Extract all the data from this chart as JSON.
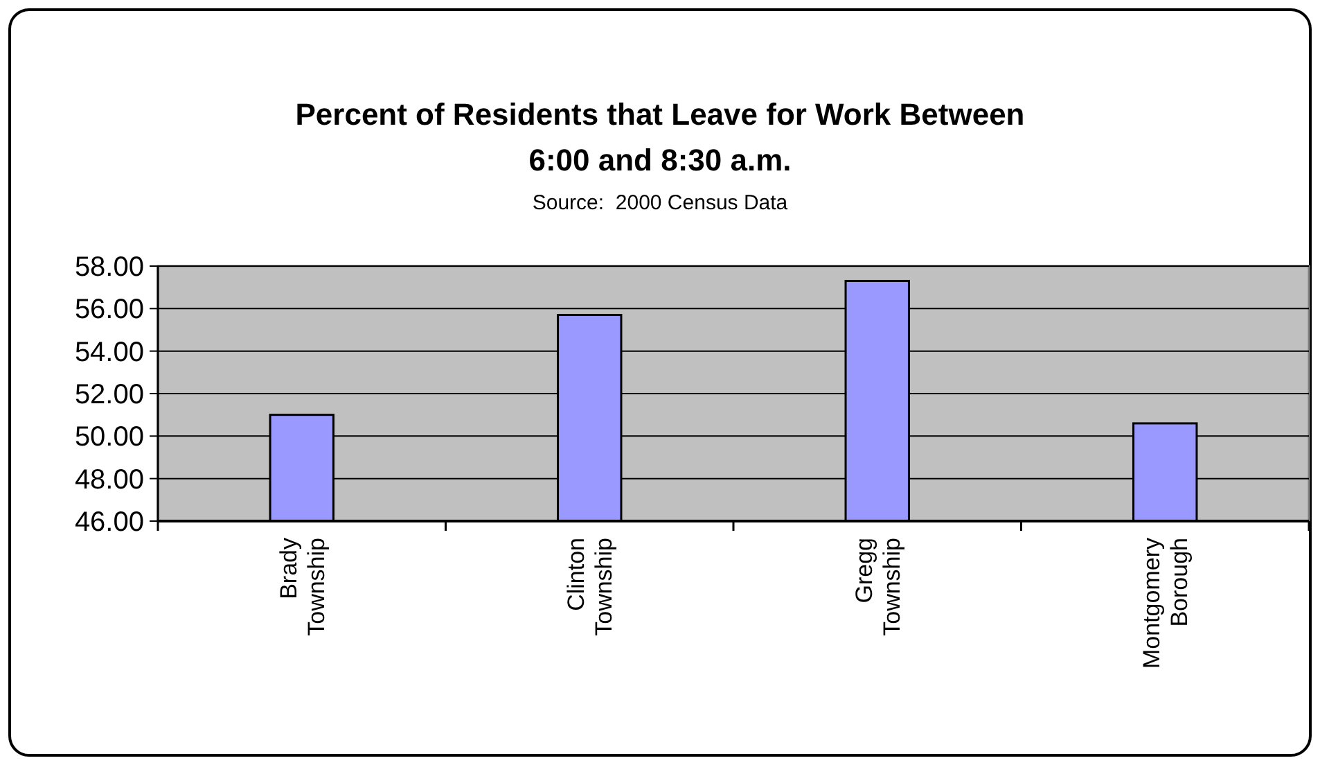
{
  "chart_data": {
    "type": "bar",
    "title": "Percent of Residents that Leave for Work Between 6:00 and 8:30 a.m.",
    "subtitle": "Source:  2000 Census Data",
    "categories": [
      "Brady Township",
      "Clinton Township",
      "Gregg Township",
      "Montgomery Borough"
    ],
    "values": [
      51.0,
      55.7,
      57.3,
      50.6
    ],
    "color": "#9999ff",
    "ylim": [
      46,
      58
    ],
    "yticks": [
      {
        "value": 46,
        "label": "46.00"
      },
      {
        "value": 48,
        "label": "48.00"
      },
      {
        "value": 50,
        "label": "50.00"
      },
      {
        "value": 52,
        "label": "52.00"
      },
      {
        "value": 54,
        "label": "54.00"
      },
      {
        "value": 56,
        "label": "56.00"
      },
      {
        "value": 58,
        "label": "58.00"
      }
    ],
    "grid": "y"
  }
}
